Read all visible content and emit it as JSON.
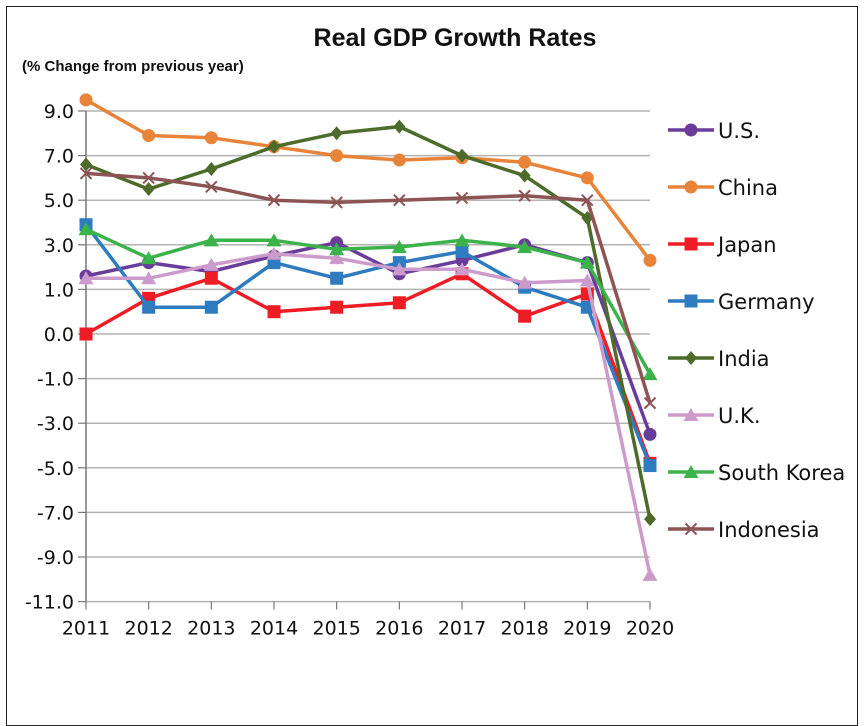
{
  "chart_data": {
    "type": "line",
    "title": "Real GDP Growth Rates",
    "subtitle": "(% Change from previous year)",
    "xlabel": "",
    "ylabel": "",
    "categories": [
      "2011",
      "2012",
      "2013",
      "2014",
      "2015",
      "2016",
      "2017",
      "2018",
      "2019",
      "2020"
    ],
    "y_ticks": [
      "9.0",
      "7.0",
      "5.0",
      "3.0",
      "1.0",
      "0.0",
      "-1.0",
      "-3.0",
      "-5.0",
      "-7.0",
      "-9.0",
      "-11.0"
    ],
    "grid": true,
    "legend_position": "right",
    "series": [
      {
        "name": "U.S.",
        "color": "#6a3d9a",
        "marker": "circle",
        "values": [
          1.6,
          2.2,
          1.8,
          2.5,
          3.1,
          1.7,
          2.3,
          3.0,
          2.2,
          -3.5
        ]
      },
      {
        "name": "China",
        "color": "#e8843a",
        "marker": "circle",
        "values": [
          9.5,
          7.9,
          7.8,
          7.4,
          7.0,
          6.8,
          6.9,
          6.7,
          6.0,
          2.3
        ]
      },
      {
        "name": "Japan",
        "color": "#ee1c25",
        "marker": "square",
        "values": [
          0.0,
          0.8,
          1.5,
          0.5,
          0.6,
          0.7,
          1.7,
          0.4,
          0.9,
          -4.8
        ]
      },
      {
        "name": "Germany",
        "color": "#2e7bbf",
        "marker": "square",
        "values": [
          3.9,
          0.6,
          0.6,
          2.2,
          1.5,
          2.2,
          2.7,
          1.1,
          0.6,
          -4.9
        ]
      },
      {
        "name": "India",
        "color": "#4d6b2a",
        "marker": "diamond",
        "values": [
          6.6,
          5.5,
          6.4,
          7.4,
          8.0,
          8.3,
          7.0,
          6.1,
          4.2,
          -7.3
        ]
      },
      {
        "name": "U.K.",
        "color": "#cc9acb",
        "marker": "triangle",
        "values": [
          1.5,
          1.5,
          2.1,
          2.6,
          2.4,
          1.9,
          1.9,
          1.3,
          1.4,
          -9.8
        ]
      },
      {
        "name": "South Korea",
        "color": "#3cb34a",
        "marker": "triangle",
        "values": [
          3.7,
          2.4,
          3.2,
          3.2,
          2.8,
          2.9,
          3.2,
          2.9,
          2.2,
          -0.9
        ]
      },
      {
        "name": "Indonesia",
        "color": "#8c5454",
        "marker": "x",
        "values": [
          6.2,
          6.0,
          5.6,
          5.0,
          4.9,
          5.0,
          5.1,
          5.2,
          5.0,
          -2.1
        ]
      }
    ]
  }
}
